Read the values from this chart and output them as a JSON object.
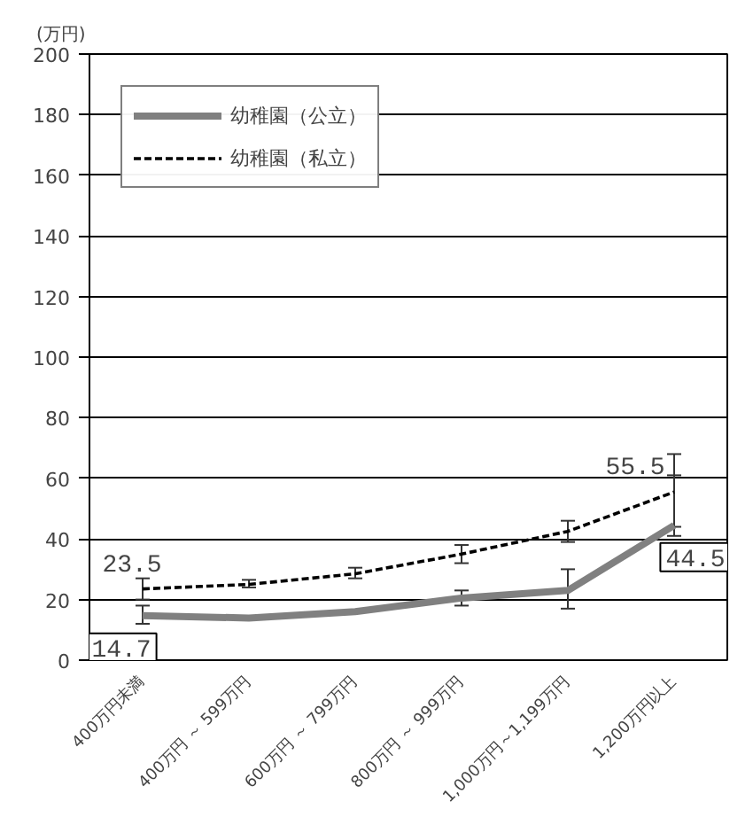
{
  "chart_data": {
    "type": "line",
    "ylabel": "(万円)",
    "categories": [
      "400万円未満",
      "400万円 ～ 599万円",
      "600万円 ～ 799万円",
      "800万円 ～ 999万円",
      "1,000万円～1,199万円",
      "1,200万円以上"
    ],
    "series": [
      {
        "name": "幼稚園（公立）",
        "color": "#808080",
        "line_style": "solid",
        "values": [
          14.7,
          13.9,
          16,
          20.5,
          23,
          44.5
        ],
        "errors": [
          [
            12,
            18
          ],
          null,
          null,
          [
            18,
            23
          ],
          [
            17,
            30
          ],
          [
            41,
            61
          ]
        ],
        "value_labels": [
          "14.7",
          null,
          null,
          null,
          null,
          "44.5"
        ]
      },
      {
        "name": "幼稚園（私立）",
        "color": "#000000",
        "line_style": "dashed",
        "values": [
          23.5,
          25,
          28.5,
          35,
          42.5,
          55.5
        ],
        "errors": [
          [
            20,
            27
          ],
          [
            24,
            26.5
          ],
          [
            27,
            30.5
          ],
          [
            32,
            38
          ],
          [
            39,
            46
          ],
          [
            44,
            68
          ]
        ],
        "value_labels": [
          "23.5",
          null,
          null,
          null,
          null,
          "55.5"
        ]
      }
    ],
    "ylim": [
      0,
      200
    ],
    "yticks": [
      0,
      20,
      40,
      60,
      80,
      100,
      120,
      140,
      160,
      180,
      200
    ],
    "grid": "y",
    "legend": "top left",
    "marker": "none"
  }
}
